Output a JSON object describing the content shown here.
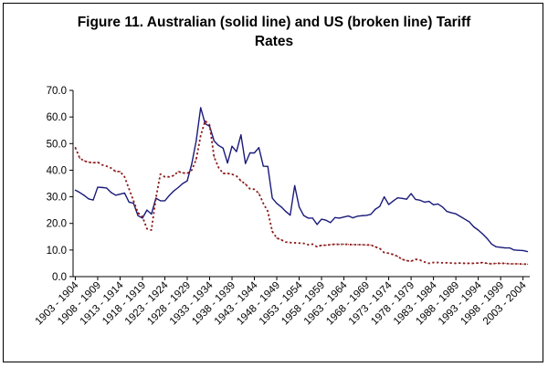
{
  "chart_data": {
    "type": "line",
    "title_line1": "Figure 11. Australian (solid line) and US (broken line) Tariff",
    "title_line2": "Rates",
    "xlabel": "",
    "ylabel": "",
    "ylim": [
      0,
      70
    ],
    "y_ticks": [
      "0.0",
      "10.0",
      "20.0",
      "30.0",
      "40.0",
      "50.0",
      "60.0",
      "70.0"
    ],
    "x_ticks": [
      "1903 - 1904",
      "1908 - 1909",
      "1913 - 1914",
      "1918 - 1919",
      "1923 - 1924",
      "1928 - 1929",
      "1933 - 1934",
      "1938 - 1939",
      "1943 - 1944",
      "1948 - 1949",
      "1953 - 1954",
      "1958 - 1959",
      "1963 - 1964",
      "1968 - 1969",
      "1973 - 1974",
      "1978 - 1979",
      "1983 - 1984",
      "1988 - 1989",
      "1993 - 1994",
      "1998 - 1999",
      "2003 - 2004"
    ],
    "x_start": 1903,
    "grid": false,
    "legend": "none",
    "series": [
      {
        "style": "solid",
        "color": "#1a1a7a",
        "values": [
          32.5,
          31.6,
          30.5,
          29.2,
          28.8,
          33.6,
          33.5,
          33.3,
          31.6,
          30.6,
          31.0,
          31.4,
          28.0,
          27.6,
          22.9,
          22.0,
          25.0,
          23.5,
          29.5,
          28.5,
          28.5,
          30.5,
          32.2,
          33.5,
          35.0,
          36.0,
          42.3,
          51.0,
          63.5,
          57.5,
          56.5,
          51.0,
          49.3,
          48.3,
          42.7,
          49.0,
          47.0,
          53.3,
          42.5,
          46.5,
          46.5,
          48.5,
          41.5,
          41.4,
          29.5,
          27.5,
          26.2,
          24.5,
          23.1,
          34.2,
          26.2,
          23.0,
          22.0,
          22.0,
          19.6,
          21.6,
          21.2,
          20.3,
          22.2,
          22.0,
          22.4,
          22.8,
          22.1,
          22.7,
          22.9,
          23.0,
          23.4,
          25.3,
          26.4,
          30.0,
          27.1,
          28.4,
          29.6,
          29.4,
          29.1,
          31.2,
          29.0,
          28.7,
          28.0,
          28.3,
          27.0,
          27.3,
          26.2,
          24.5,
          24.0,
          23.6,
          22.6,
          21.6,
          20.6,
          18.7,
          17.5,
          16.0,
          14.3,
          12.2,
          11.2,
          11.0,
          10.8,
          10.8,
          10.0,
          9.9,
          9.8,
          9.4
        ]
      },
      {
        "style": "dashed",
        "color": "#8b1a1a",
        "values": [
          48.5,
          44.5,
          43.5,
          43.0,
          42.8,
          43.0,
          42.0,
          41.5,
          40.8,
          39.5,
          39.5,
          37.5,
          33.0,
          28.5,
          24.0,
          22.5,
          18.0,
          17.5,
          29.5,
          38.5,
          37.5,
          37.5,
          38.0,
          39.5,
          39.0,
          38.8,
          40.0,
          44.0,
          53.0,
          58.5,
          57.0,
          45.0,
          41.0,
          38.8,
          38.8,
          38.5,
          37.8,
          36.0,
          34.8,
          33.0,
          32.8,
          31.3,
          27.5,
          24.5,
          17.0,
          14.5,
          13.8,
          13.0,
          12.8,
          12.7,
          12.6,
          12.5,
          12.0,
          12.2,
          11.2,
          11.8,
          11.8,
          12.0,
          12.2,
          12.1,
          12.2,
          12.1,
          12.0,
          12.0,
          12.0,
          11.9,
          11.9,
          11.2,
          10.6,
          9.0,
          8.8,
          8.3,
          7.6,
          6.5,
          6.0,
          5.8,
          6.5,
          6.2,
          5.5,
          5.0,
          5.3,
          5.3,
          5.2,
          5.2,
          5.1,
          5.0,
          5.1,
          5.0,
          5.0,
          5.0,
          5.1,
          5.3,
          5.0,
          4.8,
          5.0,
          5.0,
          5.0,
          4.8,
          4.8,
          4.8,
          4.7,
          4.7
        ]
      }
    ]
  }
}
